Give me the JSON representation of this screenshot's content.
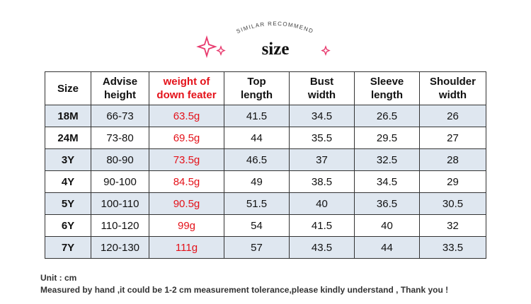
{
  "header": {
    "subtitle": "SIMILAR RECOMMEND",
    "title": "size"
  },
  "table": {
    "columns": [
      "Size",
      "Advise\nheight",
      "weight of\ndown feater",
      "Top\nlength",
      "Bust\nwidth",
      "Sleeve\nlength",
      "Shoulder\nwidth"
    ],
    "rows": [
      [
        "18M",
        "66-73",
        "63.5g",
        "41.5",
        "34.5",
        "26.5",
        "26"
      ],
      [
        "24M",
        "73-80",
        "69.5g",
        "44",
        "35.5",
        "29.5",
        "27"
      ],
      [
        "3Y",
        "80-90",
        "73.5g",
        "46.5",
        "37",
        "32.5",
        "28"
      ],
      [
        "4Y",
        "90-100",
        "84.5g",
        "49",
        "38.5",
        "34.5",
        "29"
      ],
      [
        "5Y",
        "100-110",
        "90.5g",
        "51.5",
        "40",
        "36.5",
        "30.5"
      ],
      [
        "6Y",
        "110-120",
        "99g",
        "54",
        "41.5",
        "40",
        "32"
      ],
      [
        "7Y",
        "120-130",
        "111g",
        "57",
        "43.5",
        "44",
        "33.5"
      ]
    ]
  },
  "notes": [
    "Unit : cm",
    "Measured by hand ,it could be 1-2 cm measurement tolerance,please kindly understand , Thank you !"
  ]
}
